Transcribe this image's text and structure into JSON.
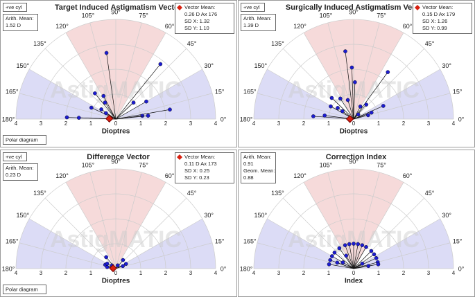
{
  "chart_data": [
    {
      "type": "polar",
      "title": "Target Induced Astigmatism Vector",
      "cyl_label": "+ve cyl",
      "info": [
        "Arith. Mean:",
        "1.52 D"
      ],
      "stats": [
        "Vector Mean:",
        "0.26 D Ax 176",
        "SD X: 1.32",
        "SD Y: 1.10"
      ],
      "mean": {
        "r": 0.26,
        "theta": 176
      },
      "xlabel": "Dioptres",
      "watermark": "AstigMATIC",
      "button": "Polar diagram",
      "color": "#1c1cd0",
      "rlim": [
        0,
        4
      ],
      "rticks": [
        0,
        1,
        2,
        3,
        4
      ],
      "angle_ticks": [
        {
          "value": 0,
          "label": "0°"
        },
        {
          "value": 15,
          "label": "15°"
        },
        {
          "value": 30,
          "label": "30°"
        },
        {
          "value": 45,
          "label": "45°"
        },
        {
          "value": 60,
          "label": "60°"
        },
        {
          "value": 75,
          "label": "75°"
        },
        {
          "value": 90,
          "label": "90°"
        },
        {
          "value": 105,
          "label": "105°"
        },
        {
          "value": 120,
          "label": "120°"
        },
        {
          "value": 135,
          "label": "135°"
        },
        {
          "value": 150,
          "label": "150°"
        },
        {
          "value": 165,
          "label": "165°"
        },
        {
          "value": 180,
          "label": "180°"
        }
      ],
      "points": {
        "r": [
          2.68,
          1.33,
          1.05,
          0.79,
          1.08,
          0.7,
          0.46,
          1.96,
          1.48,
          0.97,
          2.84,
          1.41,
          2.2,
          1.07,
          1.3
        ],
        "theta": [
          98,
          129,
          118,
          123,
          155,
          146,
          149,
          178,
          178,
          43,
          51,
          30,
          10,
          7,
          6
        ]
      }
    },
    {
      "type": "polar",
      "title": "Surgically Induced Astigmatism Vector",
      "cyl_label": "+ve cyl",
      "info": [
        "Arith. Mean:",
        "1.39 D"
      ],
      "stats": [
        "Vector Mean:",
        "0.15 D Ax 179",
        "SD X: 1.26",
        "SD Y: 0.99"
      ],
      "mean": {
        "r": 0.15,
        "theta": 179
      },
      "xlabel": "Dioptres",
      "watermark": "AstigMATIC",
      "color": "#1c1cd0",
      "rlim": [
        0,
        4
      ],
      "rticks": [
        0,
        1,
        2,
        3,
        4
      ],
      "angle_ticks": [
        {
          "value": 0,
          "label": "0°"
        },
        {
          "value": 15,
          "label": "15°"
        },
        {
          "value": 30,
          "label": "30°"
        },
        {
          "value": 45,
          "label": "45°"
        },
        {
          "value": 60,
          "label": "60°"
        },
        {
          "value": 75,
          "label": "75°"
        },
        {
          "value": 90,
          "label": "90°"
        },
        {
          "value": 105,
          "label": "105°"
        },
        {
          "value": 120,
          "label": "120°"
        },
        {
          "value": 135,
          "label": "135°"
        },
        {
          "value": 150,
          "label": "150°"
        },
        {
          "value": 165,
          "label": "165°"
        },
        {
          "value": 180,
          "label": "180°"
        }
      ],
      "points": {
        "r": [
          2.74,
          2.07,
          2.33,
          1.48,
          1.22,
          0.98,
          0.8,
          1.05,
          0.78,
          0.55,
          1.62,
          1.17,
          0.57,
          0.77,
          1.3,
          0.76,
          0.6,
          0.26
        ],
        "theta": [
          97,
          92,
          54,
          88,
          136,
          123,
          107,
          151,
          145,
          145,
          176,
          173,
          62,
          49,
          24,
          20,
          15,
          45
        ]
      }
    },
    {
      "type": "polar",
      "title": "Difference Vector",
      "cyl_label": "+ve cyl",
      "info": [
        "Arith. Mean:",
        "0.23 D"
      ],
      "stats": [
        "Vector Mean:",
        "0.11 D Ax 173",
        "SD X: 0.25",
        "SD Y: 0.23"
      ],
      "mean": {
        "r": 0.11,
        "theta": 173
      },
      "xlabel": "Dioptres",
      "watermark": "AstigMATIC",
      "button": "Polar diagram",
      "color": "#1c1cd0",
      "rlim": [
        0,
        4
      ],
      "rticks": [
        0,
        1,
        2,
        3,
        4
      ],
      "angle_ticks": [
        {
          "value": 0,
          "label": "0°"
        },
        {
          "value": 15,
          "label": "15°"
        },
        {
          "value": 30,
          "label": "30°"
        },
        {
          "value": 45,
          "label": "45°"
        },
        {
          "value": 60,
          "label": "60°"
        },
        {
          "value": 75,
          "label": "75°"
        },
        {
          "value": 90,
          "label": "90°"
        },
        {
          "value": 105,
          "label": "105°"
        },
        {
          "value": 120,
          "label": "120°"
        },
        {
          "value": 135,
          "label": "135°"
        },
        {
          "value": 150,
          "label": "150°"
        },
        {
          "value": 165,
          "label": "165°"
        },
        {
          "value": 180,
          "label": "180°"
        }
      ],
      "points": {
        "r": [
          0.45,
          0.6,
          0.4,
          0.2,
          0.45,
          0.45,
          0.3,
          0.15,
          0.35
        ],
        "theta": [
          160,
          130,
          150,
          140,
          50,
          25,
          20,
          60,
          170
        ]
      }
    },
    {
      "type": "polar",
      "title": "Correction Index",
      "info": [
        "Arith. Mean:",
        "0.91",
        "Geom. Mean:",
        "0.88"
      ],
      "xlabel": "Index",
      "watermark": "AstigMATIC",
      "color": "#1c1cd0",
      "rlim": [
        0,
        4
      ],
      "rticks": [
        0,
        1,
        2,
        3,
        4
      ],
      "angle_ticks": [
        {
          "value": 0,
          "label": "0°"
        },
        {
          "value": 15,
          "label": "15°"
        },
        {
          "value": 30,
          "label": "30°"
        },
        {
          "value": 45,
          "label": "45°"
        },
        {
          "value": 60,
          "label": "60°"
        },
        {
          "value": 75,
          "label": "75°"
        },
        {
          "value": 90,
          "label": "90°"
        },
        {
          "value": 105,
          "label": "105°"
        },
        {
          "value": 120,
          "label": "120°"
        },
        {
          "value": 135,
          "label": "135°"
        },
        {
          "value": 150,
          "label": "150°"
        },
        {
          "value": 165,
          "label": "165°"
        },
        {
          "value": 180,
          "label": "180°"
        }
      ],
      "points": {
        "r": [
          1.0,
          1.0,
          1.0,
          1.0,
          1.0,
          1.0,
          1.0,
          1.0,
          1.0,
          1.0,
          1.0,
          1.0,
          1.0,
          1.0,
          1.0,
          1.0,
          0.5,
          0.7,
          0.6,
          0.4,
          0.6
        ],
        "theta": [
          170,
          160,
          150,
          140,
          125,
          110,
          100,
          90,
          80,
          70,
          60,
          45,
          35,
          25,
          15,
          10,
          150,
          160,
          120,
          30,
          10
        ]
      }
    }
  ]
}
